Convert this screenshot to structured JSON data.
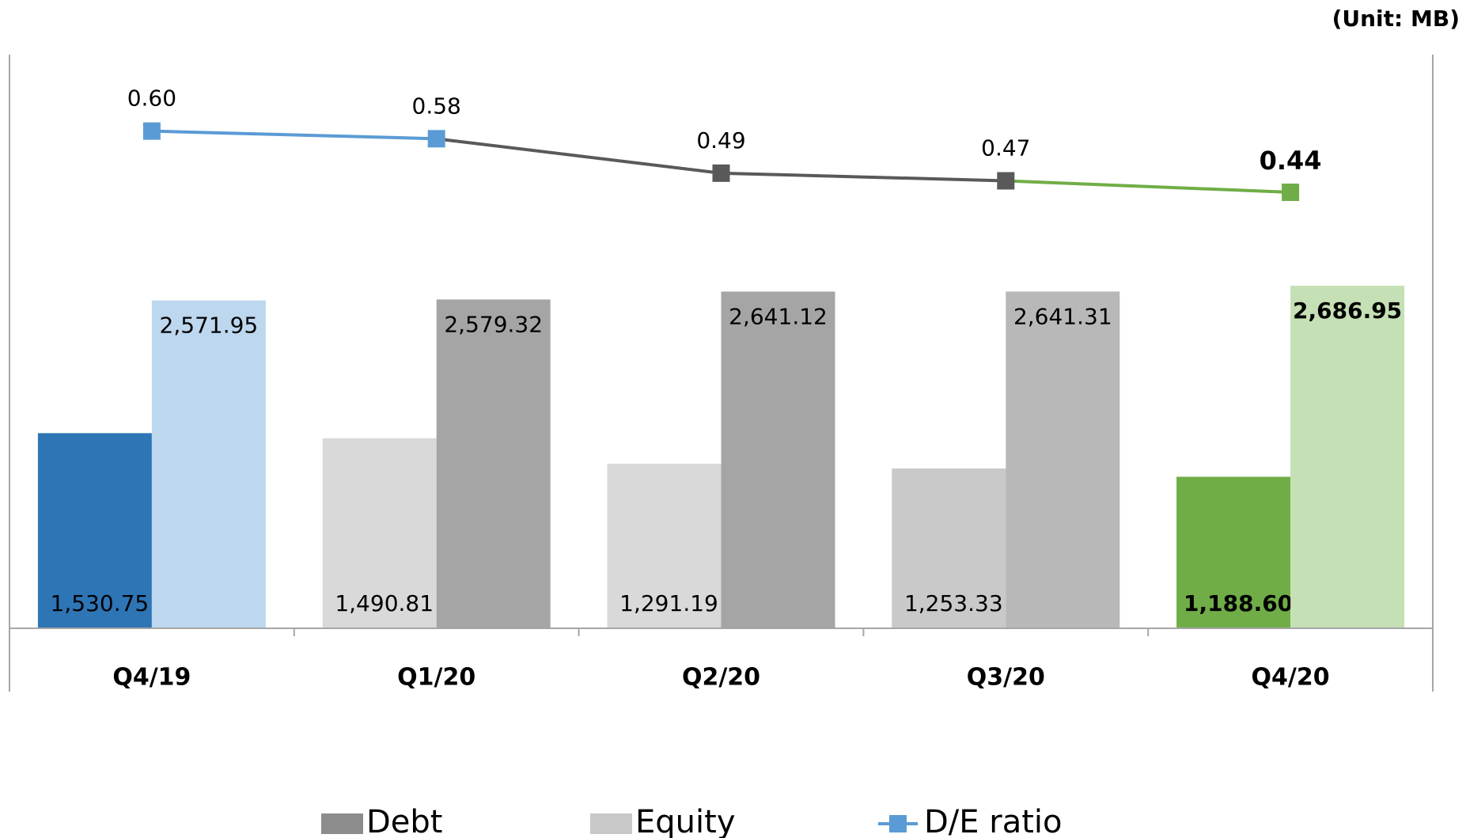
{
  "chart_data": {
    "type": "bar",
    "subtitle": "(Unit: MB)",
    "categories": [
      "Q4/19",
      "Q1/20",
      "Q2/20",
      "Q3/20",
      "Q4/20"
    ],
    "ylim": [
      0,
      4500
    ],
    "y2lim": [
      -0.7,
      0.8
    ],
    "bold_index": 4,
    "series": [
      {
        "name": "Debt",
        "color": "#8c8c8c",
        "colors": [
          "#2e75b6",
          "#d9d9d9",
          "#d9d9d9",
          "#c9c9c9",
          "#70ad47"
        ],
        "values": [
          1530.75,
          1490.81,
          1291.19,
          1253.33,
          1188.6
        ],
        "value_labels": [
          "1,530.75",
          "1,490.81",
          "1,291.19",
          "1,253.33",
          "1,188.60"
        ]
      },
      {
        "name": "Equity",
        "color": "#c8c8c8",
        "colors": [
          "#bdd7ee",
          "#a5a5a5",
          "#a5a5a5",
          "#b8b8b8",
          "#c5e0b4"
        ],
        "values": [
          2571.95,
          2579.32,
          2641.12,
          2641.31,
          2686.95
        ],
        "value_labels": [
          "2,571.95",
          "2,579.32",
          "2,641.12",
          "2,641.31",
          "2,686.95"
        ]
      },
      {
        "name": "D/E ratio",
        "type": "line",
        "axis": "y2",
        "color": "#5b9bd5",
        "colors": [
          "#5b9bd5",
          "#5b9bd5",
          "#595959",
          "#595959",
          "#70ad47"
        ],
        "values": [
          0.6,
          0.58,
          0.49,
          0.47,
          0.44
        ],
        "value_labels": [
          "0.60",
          "0.58",
          "0.49",
          "0.47",
          "0.44"
        ]
      }
    ]
  }
}
